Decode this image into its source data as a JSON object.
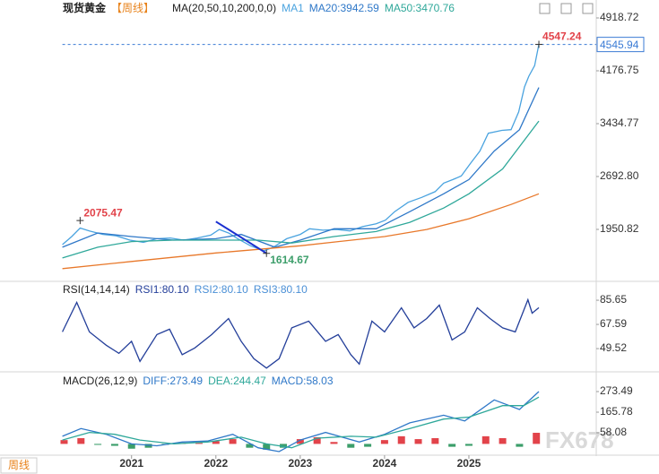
{
  "chart_data": [
    {
      "type": "line",
      "title": "现货黄金",
      "subtitle": "【周线】",
      "indicator": "MA(20,50,10,200,0,0)",
      "xlim": [
        2019.44,
        2026.51
      ],
      "ylim": [
        1246.5,
        5069.6
      ],
      "yticks": [
        4918.72,
        4176.75,
        3434.77,
        {
          "value": 2692.8,
          "label": "2692.80"
        },
        1950.82
      ],
      "last_price": 4545.94,
      "series": [
        {
          "name": "MA1",
          "color": "#4aa3df",
          "x": [
            2020.18,
            2020.29,
            2020.39,
            2020.5,
            2020.66,
            2020.82,
            2020.98,
            2021.14,
            2021.3,
            2021.46,
            2021.62,
            2021.78,
            2021.94,
            2022.04,
            2022.15,
            2022.26,
            2022.41,
            2022.57,
            2022.68,
            2022.84,
            2023.0,
            2023.11,
            2023.27,
            2023.43,
            2023.59,
            2023.74,
            2023.9,
            2024.01,
            2024.12,
            2024.28,
            2024.44,
            2024.6,
            2024.7,
            2024.81,
            2024.91,
            2025.02,
            2025.13,
            2025.23,
            2025.39,
            2025.5,
            2025.59,
            2025.66,
            2025.71,
            2025.78,
            2025.83
          ],
          "values": [
            1737,
            1850,
            1970,
            1930,
            1880,
            1860,
            1800,
            1770,
            1820,
            1830,
            1800,
            1830,
            1870,
            1950,
            1900,
            1820,
            1720,
            1650,
            1700,
            1820,
            1880,
            1960,
            1940,
            1950,
            1930,
            1990,
            2030,
            2080,
            2200,
            2330,
            2400,
            2480,
            2600,
            2650,
            2700,
            2880,
            3050,
            3300,
            3340,
            3350,
            3600,
            3950,
            4100,
            4250,
            4545.94
          ]
        },
        {
          "name": "MA20:3942.59",
          "color": "#2f78c8",
          "x": [
            2020.18,
            2020.6,
            2021.0,
            2021.5,
            2022.0,
            2022.3,
            2022.7,
            2023.0,
            2023.4,
            2023.9,
            2024.3,
            2024.7,
            2025.0,
            2025.3,
            2025.6,
            2025.83
          ],
          "values": [
            1700,
            1900,
            1850,
            1800,
            1820,
            1880,
            1700,
            1800,
            1960,
            1960,
            2200,
            2450,
            2650,
            3050,
            3350,
            3942.59
          ]
        },
        {
          "name": "MA50:3470.76",
          "color": "#2fa89a",
          "x": [
            2020.18,
            2020.6,
            2021.0,
            2021.5,
            2022.0,
            2022.5,
            2022.9,
            2023.4,
            2023.9,
            2024.3,
            2024.7,
            2025.0,
            2025.4,
            2025.83
          ],
          "values": [
            1550,
            1700,
            1780,
            1800,
            1800,
            1800,
            1760,
            1850,
            1920,
            2050,
            2250,
            2450,
            2800,
            3470.76
          ]
        },
        {
          "color": "#e8782a",
          "x": [
            2020.18,
            2021.0,
            2022.0,
            2023.0,
            2024.0,
            2024.5,
            2025.0,
            2025.5,
            2025.83
          ],
          "values": [
            1400,
            1500,
            1620,
            1720,
            1850,
            1950,
            2100,
            2300,
            2450
          ]
        }
      ],
      "trendline": {
        "color": "#1a2fd0",
        "x": [
          2022.0,
          2022.6
        ],
        "values": [
          2060,
          1614.67
        ]
      },
      "annotations": [
        {
          "x": 2020.39,
          "value": 2075.47,
          "kind": "high",
          "color": "#e2434a"
        },
        {
          "x": 2022.6,
          "value": 1614.67,
          "kind": "low",
          "color": "#3c9e6a"
        },
        {
          "x": 2025.83,
          "value": 4547.24,
          "kind": "high",
          "color": "#e2434a"
        }
      ]
    },
    {
      "type": "line",
      "title": "RSI(14,14,14)",
      "xlim": [
        2019.44,
        2026.51
      ],
      "ylim": [
        33.5,
        98.4
      ],
      "yticks": [
        85.65,
        67.59,
        49.52
      ],
      "series": [
        {
          "name": "RSI1:80.10",
          "color": "#243f9a",
          "x": [
            2020.18,
            2020.35,
            2020.5,
            2020.7,
            2020.85,
            2021.0,
            2021.1,
            2021.3,
            2021.45,
            2021.6,
            2021.75,
            2021.95,
            2022.15,
            2022.3,
            2022.45,
            2022.6,
            2022.75,
            2022.9,
            2023.1,
            2023.3,
            2023.45,
            2023.6,
            2023.7,
            2023.85,
            2024.0,
            2024.2,
            2024.35,
            2024.5,
            2024.65,
            2024.8,
            2024.95,
            2025.1,
            2025.25,
            2025.4,
            2025.55,
            2025.7,
            2025.75,
            2025.83
          ],
          "values": [
            62,
            84,
            62,
            52,
            46,
            55,
            40,
            60,
            64,
            45,
            50,
            60,
            72,
            55,
            42,
            35,
            42,
            65,
            70,
            55,
            60,
            45,
            38,
            70,
            62,
            80,
            65,
            72,
            82,
            56,
            62,
            80,
            72,
            65,
            62,
            86,
            76,
            80.1
          ]
        }
      ],
      "legend_extra": [
        {
          "name": "RSI2:80.10",
          "color": "#4a8fd6"
        },
        {
          "name": "RSI3:80.10",
          "color": "#4a8fd6"
        }
      ]
    },
    {
      "type": "macd",
      "title": "MACD(26,12,9)",
      "xlim": [
        2019.44,
        2026.51
      ],
      "ylim": [
        -44.9,
        362.5
      ],
      "yticks": [
        273.49,
        165.78,
        58.08
      ],
      "xticks": [
        2021,
        2022,
        2023,
        2024,
        2025
      ],
      "series": [
        {
          "name": "DIFF:273.49",
          "color": "#2f78c8",
          "x": [
            2020.18,
            2020.4,
            2020.7,
            2021.0,
            2021.3,
            2021.6,
            2021.9,
            2022.2,
            2022.5,
            2022.75,
            2023.0,
            2023.3,
            2023.7,
            2024.0,
            2024.3,
            2024.7,
            2024.95,
            2025.3,
            2025.6,
            2025.83
          ],
          "values": [
            40,
            80,
            50,
            0,
            -10,
            10,
            15,
            50,
            -20,
            -40,
            20,
            60,
            10,
            50,
            110,
            150,
            120,
            230,
            180,
            273.49
          ]
        },
        {
          "name": "DEA:244.47",
          "color": "#2fa89a",
          "x": [
            2020.18,
            2020.5,
            2020.8,
            2021.1,
            2021.5,
            2021.9,
            2022.3,
            2022.6,
            2022.9,
            2023.2,
            2023.6,
            2023.9,
            2024.3,
            2024.7,
            2025.0,
            2025.4,
            2025.65,
            2025.83
          ],
          "values": [
            20,
            60,
            50,
            20,
            0,
            10,
            35,
            0,
            -20,
            30,
            40,
            35,
            80,
            130,
            140,
            200,
            200,
            244.47
          ]
        }
      ],
      "bars": {
        "name": "MACD:58.03",
        "up_color": "#e2434a",
        "down_color": "#3c9e6a",
        "x": [
          2020.2,
          2020.4,
          2020.6,
          2020.8,
          2021.0,
          2021.2,
          2021.4,
          2021.6,
          2021.8,
          2022.0,
          2022.2,
          2022.4,
          2022.6,
          2022.8,
          2023.0,
          2023.2,
          2023.4,
          2023.6,
          2023.8,
          2024.0,
          2024.2,
          2024.4,
          2024.6,
          2024.8,
          2025.0,
          2025.2,
          2025.4,
          2025.6,
          2025.8
        ],
        "values": [
          20,
          30,
          -5,
          -10,
          -25,
          -20,
          -5,
          5,
          5,
          15,
          25,
          -20,
          -30,
          -20,
          25,
          35,
          10,
          -20,
          -15,
          20,
          40,
          25,
          30,
          -15,
          -10,
          40,
          30,
          -15,
          58.03
        ]
      }
    }
  ],
  "period_button": "周线",
  "watermark": "FX678"
}
